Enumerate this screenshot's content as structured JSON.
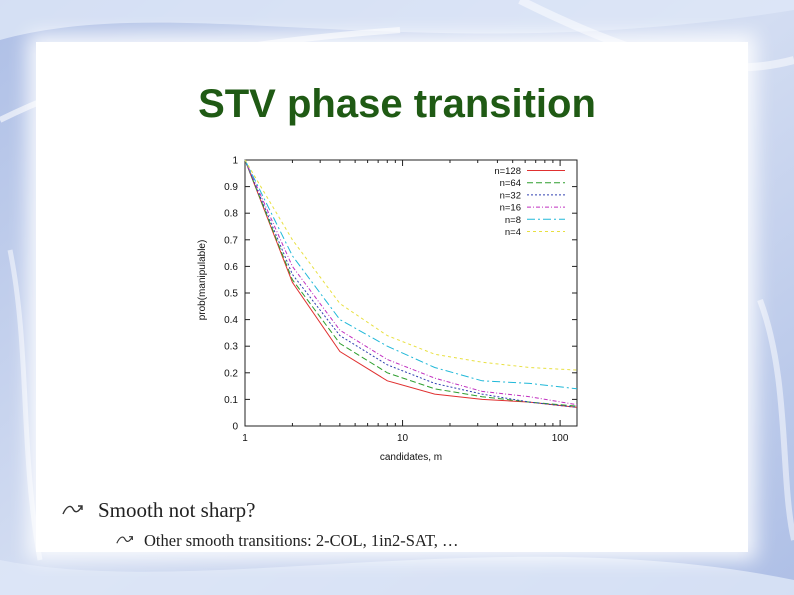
{
  "slide": {
    "title": "STV phase transition",
    "bullets": [
      {
        "level": 1,
        "text": "Smooth not sharp?"
      },
      {
        "level": 2,
        "text": "Other smooth transitions: 2-COL, 1in2-SAT, …"
      }
    ],
    "bullet_icon": "curly-arrow-icon",
    "colors": {
      "title": "#1f5a14",
      "background": "#c9d6ef",
      "panel": "#ffffff"
    }
  },
  "chart_data": {
    "type": "line",
    "title": "",
    "xlabel": "candidates, m",
    "ylabel": "prob(manipulable)",
    "x_scale": "log",
    "xlim": [
      1,
      128
    ],
    "ylim": [
      0,
      1
    ],
    "x_ticks": [
      1,
      10,
      100
    ],
    "x_tick_labels": [
      "1",
      "10",
      "100"
    ],
    "y_ticks": [
      0,
      0.1,
      0.2,
      0.3,
      0.4,
      0.5,
      0.6,
      0.7,
      0.8,
      0.9,
      1
    ],
    "y_tick_labels": [
      "0",
      "0.1",
      "0.2",
      "0.3",
      "0.4",
      "0.5",
      "0.6",
      "0.7",
      "0.8",
      "0.9",
      "1"
    ],
    "grid": false,
    "legend_position": "top-right",
    "x": [
      1,
      2,
      4,
      8,
      16,
      32,
      64,
      128
    ],
    "series": [
      {
        "name": "n=128",
        "color": "#e03030",
        "dash": "solid",
        "values": [
          1.0,
          0.54,
          0.28,
          0.17,
          0.12,
          0.1,
          0.09,
          0.07
        ]
      },
      {
        "name": "n=64",
        "color": "#2e9e2e",
        "dash": "6,3",
        "values": [
          1.0,
          0.55,
          0.31,
          0.2,
          0.14,
          0.11,
          0.09,
          0.075
        ]
      },
      {
        "name": "n=32",
        "color": "#3040b0",
        "dash": "2,2",
        "values": [
          1.0,
          0.57,
          0.34,
          0.23,
          0.16,
          0.12,
          0.09,
          0.07
        ]
      },
      {
        "name": "n=16",
        "color": "#c030c0",
        "dash": "4,2,1,2",
        "values": [
          1.0,
          0.6,
          0.36,
          0.25,
          0.18,
          0.13,
          0.11,
          0.08
        ]
      },
      {
        "name": "n=8",
        "color": "#20b8d8",
        "dash": "8,3,2,3",
        "values": [
          1.0,
          0.64,
          0.4,
          0.3,
          0.22,
          0.17,
          0.16,
          0.14
        ]
      },
      {
        "name": "n=4",
        "color": "#e8e040",
        "dash": "3,3",
        "values": [
          1.0,
          0.7,
          0.46,
          0.34,
          0.27,
          0.24,
          0.22,
          0.21
        ]
      }
    ]
  }
}
